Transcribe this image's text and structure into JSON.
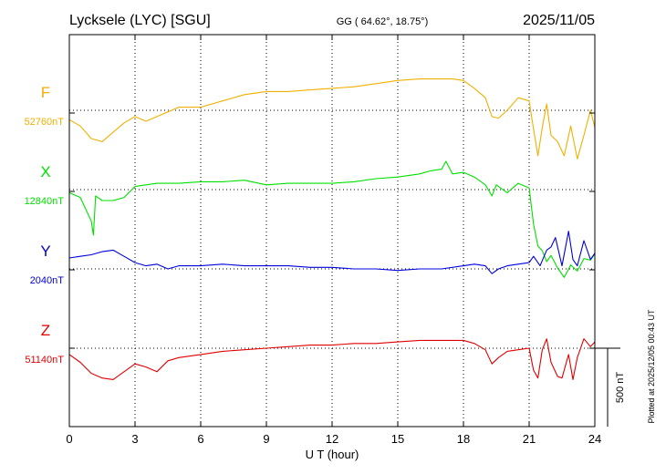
{
  "header": {
    "station": "Lycksele (LYC)  [SGU]",
    "coords": "GG ( 64.62°,  18.75°)",
    "date": "2025/11/05"
  },
  "side_note": "Plotted at 2025/12/05 00:43 UT",
  "chart_data": {
    "type": "line",
    "xlabel": "U T (hour)",
    "xlim": [
      0,
      24
    ],
    "xticks": [
      0,
      3,
      6,
      9,
      12,
      15,
      18,
      21,
      24
    ],
    "xtick_labels": [
      "0",
      "3",
      "6",
      "9",
      "12",
      "15",
      "18",
      "21",
      "24"
    ],
    "scale_bar": {
      "label": "500 nT",
      "nT": 500
    },
    "colors": {
      "F": "#f0b000",
      "X": "#00e000",
      "Y": "#0000dd",
      "Z": "#e00000"
    },
    "series": [
      {
        "name": "F",
        "baseline_label": "52760nT",
        "baseline": 52760,
        "points": [
          [
            0,
            52700
          ],
          [
            0.5,
            52660
          ],
          [
            1,
            52580
          ],
          [
            1.5,
            52560
          ],
          [
            2,
            52620
          ],
          [
            2.5,
            52680
          ],
          [
            3,
            52720
          ],
          [
            3.5,
            52690
          ],
          [
            4,
            52720
          ],
          [
            5,
            52780
          ],
          [
            6,
            52780
          ],
          [
            7,
            52820
          ],
          [
            8,
            52860
          ],
          [
            9,
            52880
          ],
          [
            10,
            52880
          ],
          [
            11,
            52890
          ],
          [
            12,
            52900
          ],
          [
            13,
            52910
          ],
          [
            14,
            52930
          ],
          [
            15,
            52950
          ],
          [
            16,
            52960
          ],
          [
            17,
            52960
          ],
          [
            17.5,
            52960
          ],
          [
            18,
            52950
          ],
          [
            18.5,
            52900
          ],
          [
            19,
            52840
          ],
          [
            19.3,
            52720
          ],
          [
            19.6,
            52710
          ],
          [
            20,
            52760
          ],
          [
            20.5,
            52840
          ],
          [
            21,
            52820
          ],
          [
            21.2,
            52640
          ],
          [
            21.4,
            52470
          ],
          [
            21.6,
            52650
          ],
          [
            21.8,
            52800
          ],
          [
            22,
            52600
          ],
          [
            22.3,
            52560
          ],
          [
            22.6,
            52470
          ],
          [
            22.9,
            52660
          ],
          [
            23.2,
            52450
          ],
          [
            23.5,
            52600
          ],
          [
            23.8,
            52760
          ],
          [
            24,
            52650
          ]
        ]
      },
      {
        "name": "X",
        "baseline_label": "12840nT",
        "baseline": 12840,
        "points": [
          [
            0,
            12820
          ],
          [
            0.5,
            12790
          ],
          [
            1,
            12640
          ],
          [
            1.1,
            12550
          ],
          [
            1.2,
            12800
          ],
          [
            1.5,
            12770
          ],
          [
            2,
            12770
          ],
          [
            2.5,
            12790
          ],
          [
            3,
            12860
          ],
          [
            4,
            12880
          ],
          [
            5,
            12880
          ],
          [
            6,
            12890
          ],
          [
            7,
            12890
          ],
          [
            8,
            12900
          ],
          [
            9,
            12870
          ],
          [
            10,
            12880
          ],
          [
            11,
            12880
          ],
          [
            12,
            12880
          ],
          [
            13,
            12890
          ],
          [
            14,
            12910
          ],
          [
            15,
            12920
          ],
          [
            16,
            12940
          ],
          [
            16.5,
            12960
          ],
          [
            17,
            12970
          ],
          [
            17.2,
            13020
          ],
          [
            17.5,
            12940
          ],
          [
            18,
            12950
          ],
          [
            18.5,
            12920
          ],
          [
            19,
            12870
          ],
          [
            19.3,
            12800
          ],
          [
            19.5,
            12870
          ],
          [
            20,
            12820
          ],
          [
            20.5,
            12880
          ],
          [
            21,
            12850
          ],
          [
            21.2,
            12620
          ],
          [
            21.4,
            12480
          ],
          [
            21.6,
            12450
          ],
          [
            21.8,
            12380
          ],
          [
            22,
            12420
          ],
          [
            22.3,
            12340
          ],
          [
            22.6,
            12280
          ],
          [
            22.9,
            12360
          ],
          [
            23.2,
            12320
          ],
          [
            23.5,
            12400
          ],
          [
            23.8,
            12390
          ],
          [
            24,
            12430
          ]
        ]
      },
      {
        "name": "Y",
        "baseline_label": "2040nT",
        "baseline": 2040,
        "points": [
          [
            0,
            2110
          ],
          [
            0.5,
            2120
          ],
          [
            1,
            2130
          ],
          [
            1.5,
            2150
          ],
          [
            2,
            2160
          ],
          [
            2.5,
            2120
          ],
          [
            3,
            2080
          ],
          [
            3.5,
            2060
          ],
          [
            4,
            2070
          ],
          [
            4.5,
            2040
          ],
          [
            5,
            2060
          ],
          [
            6,
            2060
          ],
          [
            7,
            2070
          ],
          [
            8,
            2060
          ],
          [
            9,
            2060
          ],
          [
            10,
            2060
          ],
          [
            11,
            2050
          ],
          [
            12,
            2050
          ],
          [
            13,
            2040
          ],
          [
            14,
            2040
          ],
          [
            15,
            2030
          ],
          [
            16,
            2040
          ],
          [
            17,
            2040
          ],
          [
            18,
            2060
          ],
          [
            18.5,
            2070
          ],
          [
            19,
            2060
          ],
          [
            19.3,
            2010
          ],
          [
            19.6,
            2040
          ],
          [
            20,
            2060
          ],
          [
            20.5,
            2070
          ],
          [
            21,
            2080
          ],
          [
            21.2,
            2120
          ],
          [
            21.5,
            2060
          ],
          [
            21.8,
            2160
          ],
          [
            22,
            2180
          ],
          [
            22.2,
            2240
          ],
          [
            22.5,
            2060
          ],
          [
            22.8,
            2280
          ],
          [
            23,
            2100
          ],
          [
            23.2,
            2060
          ],
          [
            23.5,
            2220
          ],
          [
            23.8,
            2100
          ],
          [
            24,
            2140
          ]
        ]
      },
      {
        "name": "Z",
        "baseline_label": "51140nT",
        "baseline": 51140,
        "points": [
          [
            0,
            51100
          ],
          [
            0.5,
            51050
          ],
          [
            1,
            50980
          ],
          [
            1.5,
            50950
          ],
          [
            2,
            50940
          ],
          [
            2.5,
            50990
          ],
          [
            3,
            51040
          ],
          [
            3.5,
            51020
          ],
          [
            4,
            50990
          ],
          [
            4.5,
            51060
          ],
          [
            5,
            51080
          ],
          [
            6,
            51100
          ],
          [
            7,
            51120
          ],
          [
            8,
            51130
          ],
          [
            9,
            51140
          ],
          [
            10,
            51150
          ],
          [
            11,
            51160
          ],
          [
            12,
            51160
          ],
          [
            13,
            51170
          ],
          [
            14,
            51170
          ],
          [
            15,
            51180
          ],
          [
            16,
            51190
          ],
          [
            17,
            51190
          ],
          [
            18,
            51190
          ],
          [
            18.5,
            51170
          ],
          [
            19,
            51130
          ],
          [
            19.3,
            51040
          ],
          [
            19.6,
            51080
          ],
          [
            20,
            51120
          ],
          [
            20.5,
            51130
          ],
          [
            21,
            51140
          ],
          [
            21.2,
            51000
          ],
          [
            21.4,
            50950
          ],
          [
            21.6,
            51130
          ],
          [
            21.8,
            51200
          ],
          [
            22,
            51050
          ],
          [
            22.3,
            50960
          ],
          [
            22.5,
            50950
          ],
          [
            22.8,
            51100
          ],
          [
            23,
            50940
          ],
          [
            23.2,
            51080
          ],
          [
            23.5,
            51200
          ],
          [
            23.8,
            51150
          ],
          [
            24,
            51180
          ]
        ]
      }
    ]
  }
}
